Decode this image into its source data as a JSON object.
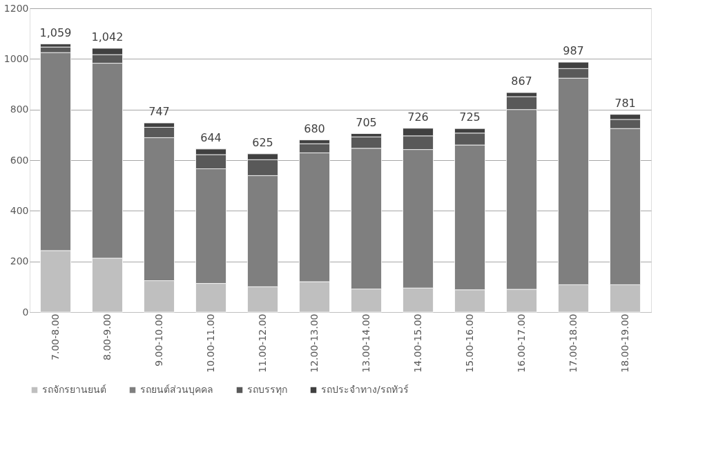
{
  "chart_data": {
    "type": "bar",
    "stacked": true,
    "categories": [
      "7.00-8.00",
      "8.00-9.00",
      "9.00-10.00",
      "10.00-11.00",
      "11.00-12.00",
      "12.00-13.00",
      "13.00-14.00",
      "14.00-15.00",
      "15.00-16.00",
      "16.00-17.00",
      "17.00-18.00",
      "18.00-19.00"
    ],
    "series": [
      {
        "name": "รถจักรยานยนต์",
        "color": "#bfbfbf",
        "values": [
          243,
          213,
          124,
          113,
          100,
          120,
          91,
          95,
          88,
          90,
          108,
          108
        ]
      },
      {
        "name": "รถยนต์ส่วนบุคคล",
        "color": "#7f7f7f",
        "values": [
          782,
          770,
          565,
          453,
          439,
          509,
          556,
          547,
          572,
          710,
          816,
          617
        ]
      },
      {
        "name": "รถบรรทุก",
        "color": "#595959",
        "values": [
          22,
          34,
          41,
          56,
          63,
          36,
          45,
          54,
          47,
          51,
          38,
          36
        ]
      },
      {
        "name": "รถประจำทาง/รถทัวร์",
        "color": "#404040",
        "values": [
          12,
          25,
          17,
          22,
          23,
          15,
          13,
          30,
          18,
          16,
          25,
          20
        ]
      }
    ],
    "totals": [
      "1,059",
      "1,042",
      "747",
      "644",
      "625",
      "680",
      "705",
      "726",
      "725",
      "867",
      "987",
      "781"
    ],
    "ylim": [
      0,
      1200
    ],
    "yticks": [
      0,
      200,
      400,
      600,
      800,
      1000,
      1200
    ],
    "grid": "y",
    "legend": "bottom"
  }
}
